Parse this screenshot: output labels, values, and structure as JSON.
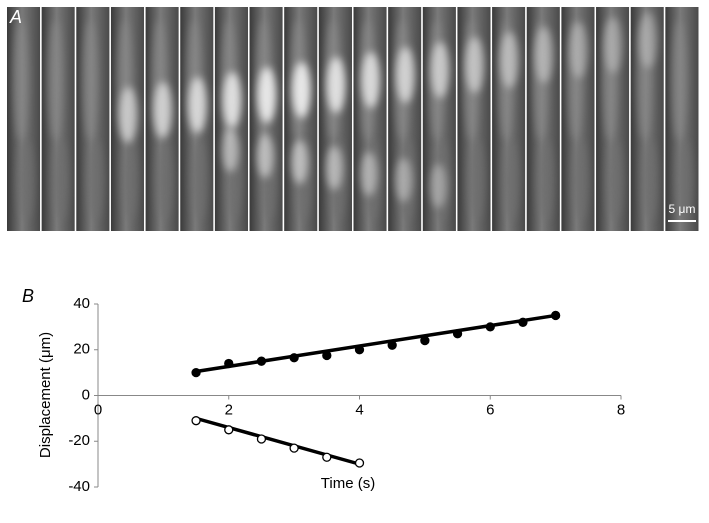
{
  "panel_labels": [
    "A",
    "B"
  ],
  "scale_bar_label": "5 μm",
  "chart_data": {
    "type": "scatter",
    "x_label": "Time (s)",
    "y_label": "Displacement (μm)",
    "xlim": [
      0,
      8
    ],
    "xticks": [
      0,
      2,
      4,
      6,
      8
    ],
    "ylim": [
      -40,
      40
    ],
    "yticks": [
      -40,
      -20,
      0,
      20,
      40
    ],
    "series": [
      {
        "marker": "filled",
        "color": "#000000",
        "x": [
          1.5,
          2,
          2.5,
          3,
          3.5,
          4,
          4.5,
          5,
          5.5,
          6,
          6.5,
          7
        ],
        "values": [
          10,
          14,
          15,
          16.5,
          17.5,
          20,
          22,
          24,
          27,
          30,
          32,
          35
        ],
        "fit": {
          "x": [
            1.5,
            7
          ],
          "values": [
            10.5,
            35
          ]
        }
      },
      {
        "marker": "open",
        "color": "#000000",
        "x": [
          1.5,
          2,
          2.5,
          3,
          3.5,
          4
        ],
        "values": [
          -11,
          -15,
          -19,
          -23,
          -27,
          -29.5
        ],
        "fit": {
          "x": [
            1.5,
            4
          ],
          "values": [
            -10,
            -30
          ]
        }
      }
    ]
  }
}
